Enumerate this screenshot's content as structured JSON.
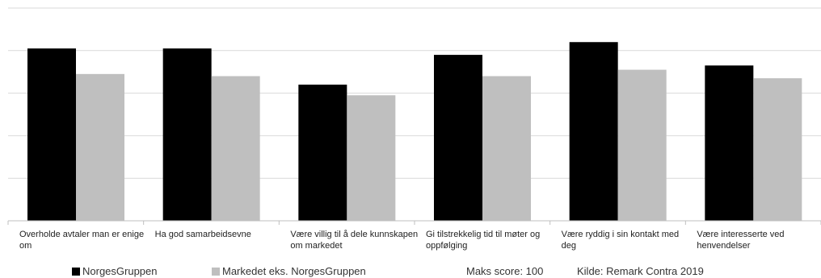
{
  "chart_data": {
    "type": "bar",
    "categories": [
      "Overholde avtaler man er enige om",
      "Ha god samarbeidsevne",
      "Være villig til å dele kunnskapen om markedet",
      "Gi tilstrekkelig tid til møter og oppfølging",
      "Være ryddig i sin kontakt med deg",
      "Være interesserte ved henvendelser"
    ],
    "series": [
      {
        "name": "NorgesGruppen",
        "color": "#000000",
        "values": [
          81,
          81,
          64,
          78,
          84,
          73
        ]
      },
      {
        "name": "Markedet eks. NorgesGruppen",
        "color": "#bfbfbf",
        "values": [
          69,
          68,
          59,
          68,
          71,
          67
        ]
      }
    ],
    "ylim": [
      0,
      100
    ],
    "grid": true,
    "tick_labels_visible": false,
    "legend_position": "bottom",
    "notes": [
      "Maks score: 100",
      "Kilde: Remark Contra 2019"
    ]
  }
}
